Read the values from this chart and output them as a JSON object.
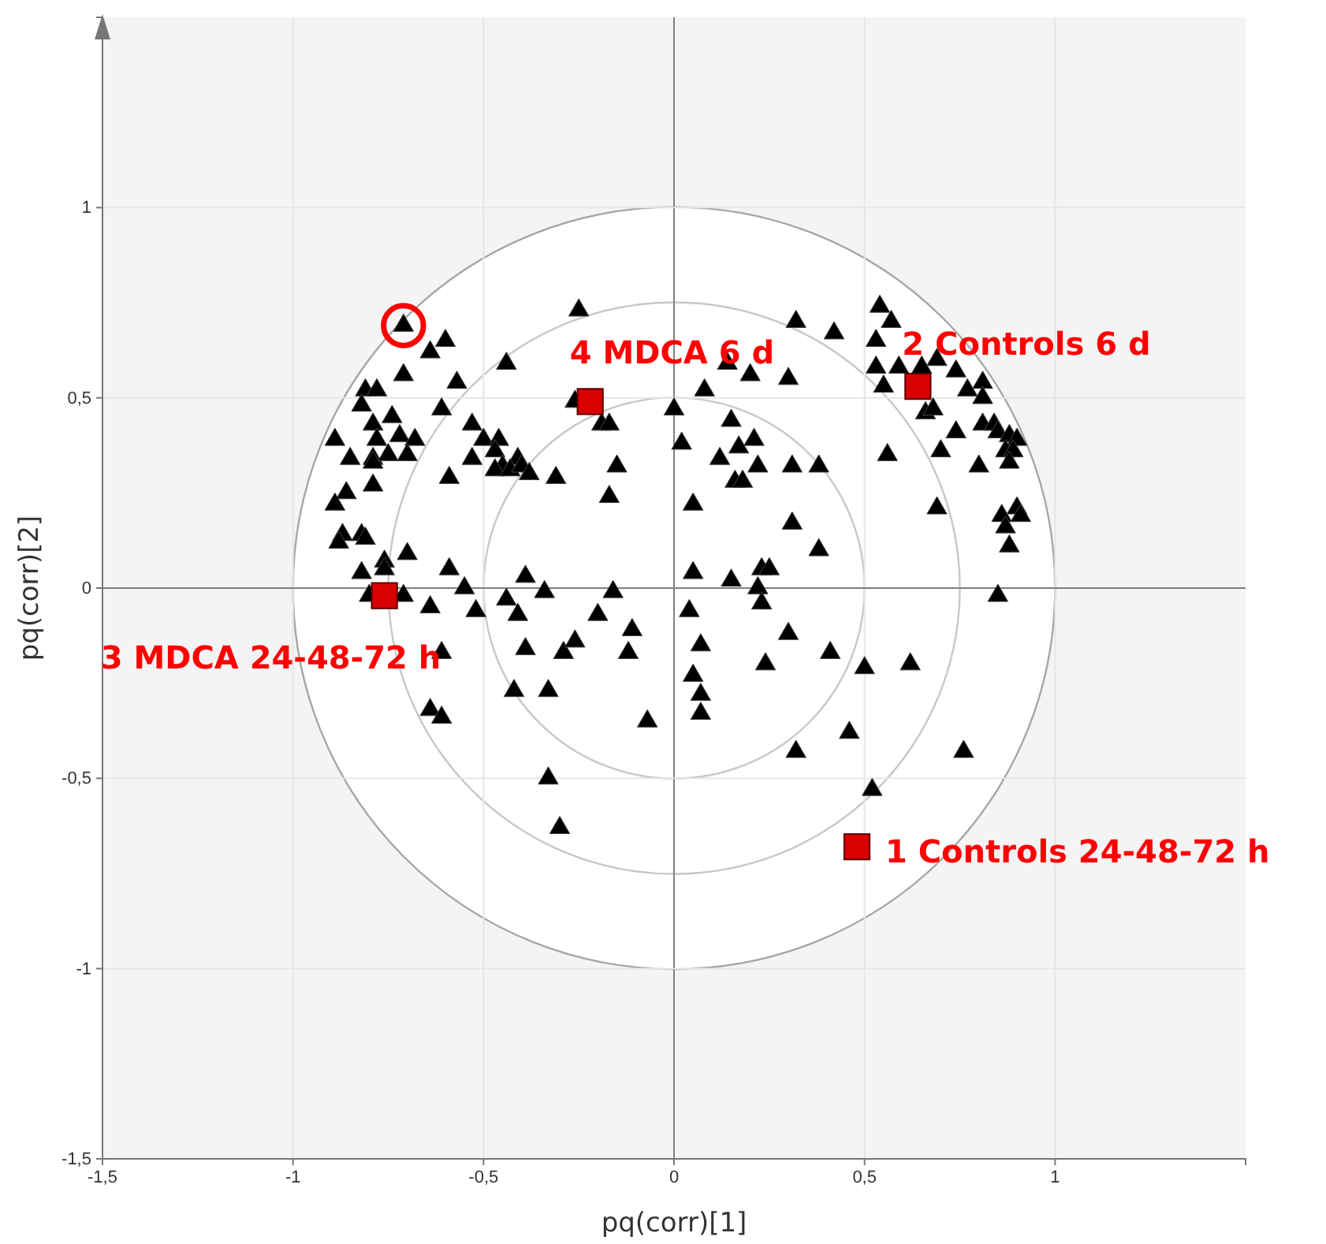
{
  "chart_data": {
    "type": "scatter",
    "xlabel": "pq(corr)[1]",
    "ylabel": "pq(corr)[2]",
    "xlim": [
      -1.5,
      1.5
    ],
    "ylim": [
      -1.5,
      1.5
    ],
    "xticks": [
      {
        "value": -1.5,
        "label": "-1,5"
      },
      {
        "value": -1,
        "label": "-1"
      },
      {
        "value": -0.5,
        "label": "-0,5"
      },
      {
        "value": 0,
        "label": "0"
      },
      {
        "value": 0.5,
        "label": "0,5"
      },
      {
        "value": 1,
        "label": "1"
      }
    ],
    "yticks": [
      {
        "value": -1.5,
        "label": "-1,5"
      },
      {
        "value": -1,
        "label": "-1"
      },
      {
        "value": -0.5,
        "label": "-0,5"
      },
      {
        "value": 0,
        "label": "0"
      },
      {
        "value": 0.5,
        "label": "0,5"
      },
      {
        "value": 1,
        "label": "1"
      }
    ],
    "grid": true,
    "series": [
      {
        "type": "scatter",
        "marker": "triangle",
        "color": "#000000",
        "x": [
          -0.71,
          -0.6,
          -0.64,
          -0.71,
          -0.57,
          -0.44,
          -0.25,
          -0.81,
          -0.78,
          -0.82,
          -0.61,
          -0.74,
          -0.89,
          -0.79,
          -0.78,
          -0.72,
          -0.68,
          -0.85,
          -0.79,
          -0.79,
          -0.75,
          -0.7,
          -0.53,
          -0.5,
          -0.46,
          -0.53,
          -0.47,
          -0.45,
          -0.41,
          -0.47,
          -0.43,
          -0.4,
          -0.38,
          -0.59,
          -0.31,
          -0.15,
          -0.17,
          -0.79,
          -0.86,
          -0.89,
          -0.87,
          -0.82,
          -0.81,
          -0.88,
          -0.7,
          -0.76,
          -0.76,
          -0.82,
          -0.59,
          -0.55,
          -0.39,
          -0.26,
          -0.19,
          -0.17,
          0,
          -0.8,
          -0.71,
          0.54,
          0.57,
          0.32,
          0.42,
          0.53,
          0.69,
          0.53,
          0.59,
          0.65,
          0.74,
          0.14,
          0.2,
          0.3,
          0.08,
          0.55,
          0.81,
          0.77,
          0.81,
          0.66,
          0.68,
          0.81,
          0.84,
          0.85,
          0.88,
          0.9,
          0.87,
          0.89,
          0.88,
          0.74,
          0.7,
          0.8,
          0.56,
          0.69,
          0.86,
          0.9,
          0.91,
          0.87,
          0.88,
          0.85,
          0.15,
          0.02,
          0.17,
          0.21,
          0.12,
          0.22,
          0.31,
          0.38,
          0.16,
          0.18,
          0.05,
          0.31,
          0.38,
          0.05,
          0.15,
          0.23,
          0.25,
          0.22,
          -0.64,
          -0.52,
          -0.44,
          -0.41,
          -0.34,
          -0.16,
          -0.2,
          -0.11,
          -0.61,
          -0.39,
          -0.29,
          -0.26,
          -0.12,
          -0.42,
          -0.33,
          -0.07,
          -0.64,
          -0.61,
          -0.33,
          -0.3,
          0.23,
          0.04,
          0.3,
          0.07,
          0.24,
          0.41,
          0.05,
          0.5,
          0.62,
          0.07,
          0.07,
          0.46,
          0.32,
          0.76,
          0.52
        ],
        "values": [
          0.69,
          0.65,
          0.62,
          0.56,
          0.54,
          0.59,
          0.73,
          0.52,
          0.52,
          0.48,
          0.47,
          0.45,
          0.39,
          0.43,
          0.39,
          0.4,
          0.39,
          0.34,
          0.34,
          0.33,
          0.35,
          0.35,
          0.43,
          0.39,
          0.39,
          0.34,
          0.36,
          0.32,
          0.34,
          0.31,
          0.31,
          0.32,
          0.3,
          0.29,
          0.29,
          0.32,
          0.24,
          0.27,
          0.25,
          0.22,
          0.14,
          0.14,
          0.13,
          0.12,
          0.09,
          0.07,
          0.05,
          0.04,
          0.05,
          0,
          0.03,
          0.49,
          0.43,
          0.43,
          0.47,
          -0.02,
          -0.02,
          0.74,
          0.7,
          0.7,
          0.67,
          0.65,
          0.6,
          0.58,
          0.58,
          0.58,
          0.57,
          0.59,
          0.56,
          0.55,
          0.52,
          0.53,
          0.54,
          0.52,
          0.5,
          0.46,
          0.47,
          0.43,
          0.43,
          0.41,
          0.4,
          0.39,
          0.36,
          0.36,
          0.33,
          0.41,
          0.36,
          0.32,
          0.35,
          0.21,
          0.19,
          0.21,
          0.19,
          0.16,
          0.11,
          -0.02,
          0.44,
          0.38,
          0.37,
          0.39,
          0.34,
          0.32,
          0.32,
          0.32,
          0.28,
          0.28,
          0.22,
          0.17,
          0.1,
          0.04,
          0.02,
          0.05,
          0.05,
          0,
          -0.05,
          -0.06,
          -0.03,
          -0.07,
          -0.01,
          -0.01,
          -0.07,
          -0.11,
          -0.17,
          -0.16,
          -0.17,
          -0.14,
          -0.17,
          -0.27,
          -0.27,
          -0.35,
          -0.32,
          -0.34,
          -0.5,
          -0.63,
          -0.04,
          -0.06,
          -0.12,
          -0.15,
          -0.2,
          -0.17,
          -0.23,
          -0.21,
          -0.2,
          -0.28,
          -0.33,
          -0.38,
          -0.43,
          -0.43,
          -0.53
        ]
      },
      {
        "type": "scatter",
        "marker": "square",
        "color": "#d80000",
        "x": [
          0.48,
          0.64,
          -0.76,
          -0.22
        ],
        "values": [
          -0.68,
          0.53,
          -0.02,
          0.49
        ]
      },
      {
        "type": "scatter",
        "marker": "circle",
        "color": "#ff0000",
        "x": [
          -0.71
        ],
        "values": [
          0.69
        ]
      }
    ],
    "annotations": [
      {
        "text": "1 Controls 24-48-72 h",
        "x": 0.48,
        "y": -0.68
      },
      {
        "text": "2 Controls 6 d",
        "x": 0.64,
        "y": 0.53
      },
      {
        "text": "3 MDCA 24-48-72 h",
        "x": -0.76,
        "y": -0.02
      },
      {
        "text": "4 MDCA 6 d",
        "x": -0.22,
        "y": 0.49
      }
    ]
  }
}
